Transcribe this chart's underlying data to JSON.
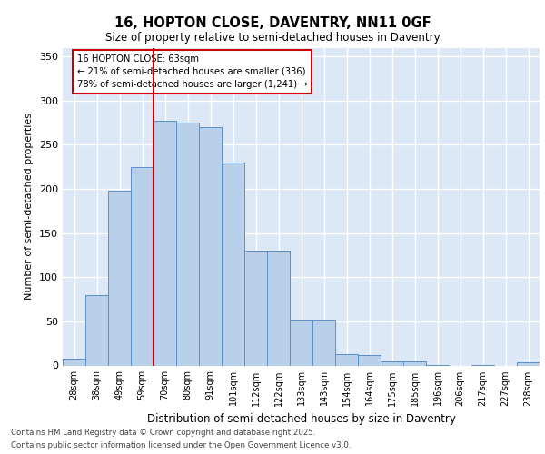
{
  "title_line1": "16, HOPTON CLOSE, DAVENTRY, NN11 0GF",
  "title_line2": "Size of property relative to semi-detached houses in Daventry",
  "xlabel": "Distribution of semi-detached houses by size in Daventry",
  "ylabel": "Number of semi-detached properties",
  "categories": [
    "28sqm",
    "38sqm",
    "49sqm",
    "59sqm",
    "70sqm",
    "80sqm",
    "91sqm",
    "101sqm",
    "112sqm",
    "122sqm",
    "133sqm",
    "143sqm",
    "154sqm",
    "164sqm",
    "175sqm",
    "185sqm",
    "196sqm",
    "206sqm",
    "217sqm",
    "227sqm",
    "238sqm"
  ],
  "values": [
    8,
    80,
    198,
    225,
    277,
    275,
    270,
    230,
    130,
    130,
    52,
    52,
    13,
    12,
    5,
    5,
    1,
    0,
    1,
    0,
    4
  ],
  "bar_color": "#b8d0ea",
  "bar_edge_color": "#5b8fc9",
  "background_color": "#dce8f5",
  "grid_color": "#ffffff",
  "ylim": [
    0,
    360
  ],
  "yticks": [
    0,
    50,
    100,
    150,
    200,
    250,
    300,
    350
  ],
  "annotation_title": "16 HOPTON CLOSE: 63sqm",
  "annotation_line2": "← 21% of semi-detached houses are smaller (336)",
  "annotation_line3": "78% of semi-detached houses are larger (1,241) →",
  "vline_x_index": 3.5,
  "vline_color": "#cc0000",
  "box_color": "#cc0000",
  "footnote_line1": "Contains HM Land Registry data © Crown copyright and database right 2025.",
  "footnote_line2": "Contains public sector information licensed under the Open Government Licence v3.0."
}
